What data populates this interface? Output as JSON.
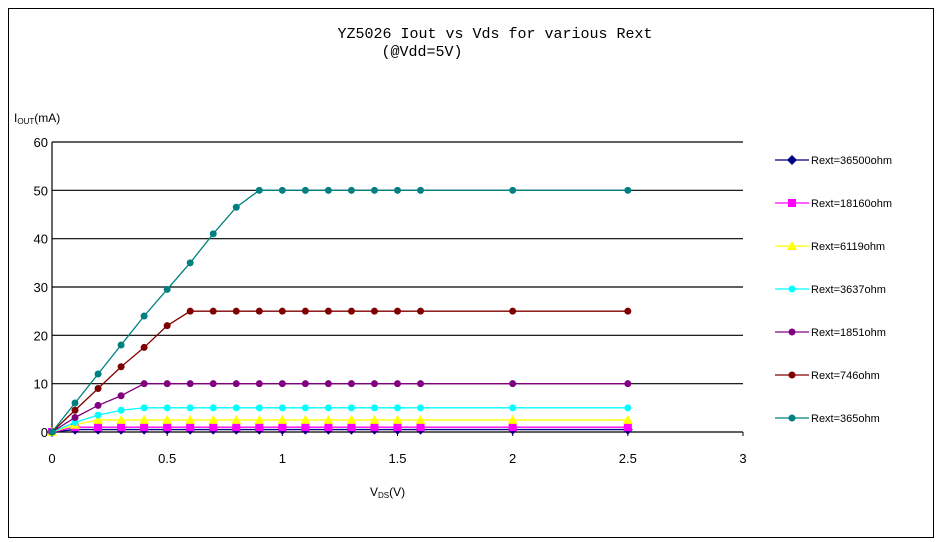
{
  "chart_data": {
    "type": "line",
    "title": "YZ5026 Iout vs Vds for various Rext",
    "subtitle": "(@Vdd=5V)",
    "ylabel_main": "I",
    "ylabel_sub": "OUT",
    "ylabel_unit": "(mA)",
    "xlabel_main": "V",
    "xlabel_sub": "DS",
    "xlabel_unit": "(V)",
    "xlim": [
      0,
      3
    ],
    "ylim": [
      0,
      60
    ],
    "x_ticks": [
      "0",
      "0.5",
      "1",
      "1.5",
      "2",
      "2.5",
      "3"
    ],
    "y_ticks": [
      "0",
      "10",
      "20",
      "30",
      "40",
      "50",
      "60"
    ],
    "grid": "horizontal",
    "legend_position": "right",
    "x": [
      0,
      0.1,
      0.2,
      0.3,
      0.4,
      0.5,
      0.6,
      0.7,
      0.8,
      0.9,
      1.0,
      1.1,
      1.2,
      1.3,
      1.4,
      1.5,
      1.6,
      2.0,
      2.5
    ],
    "series": [
      {
        "name": "Rext=36500ohm",
        "color": "#000080",
        "marker": "diamond",
        "values": [
          0,
          0.5,
          0.5,
          0.5,
          0.5,
          0.5,
          0.5,
          0.5,
          0.5,
          0.5,
          0.5,
          0.5,
          0.5,
          0.5,
          0.5,
          0.5,
          0.5,
          0.5,
          0.5
        ]
      },
      {
        "name": "Rext=18160ohm",
        "color": "#ff00ff",
        "marker": "square",
        "values": [
          0,
          1,
          1,
          1,
          1,
          1,
          1,
          1,
          1,
          1,
          1,
          1,
          1,
          1,
          1,
          1,
          1,
          1,
          1
        ]
      },
      {
        "name": "Rext=6119ohm",
        "color": "#ffff00",
        "marker": "triangle",
        "values": [
          0,
          1.5,
          2.5,
          2.5,
          2.5,
          2.5,
          2.5,
          2.5,
          2.5,
          2.5,
          2.5,
          2.5,
          2.5,
          2.5,
          2.5,
          2.5,
          2.5,
          2.5,
          2.5
        ]
      },
      {
        "name": "Rext=3637ohm",
        "color": "#00ffff",
        "marker": "circle",
        "values": [
          0,
          2,
          3.5,
          4.5,
          5,
          5,
          5,
          5,
          5,
          5,
          5,
          5,
          5,
          5,
          5,
          5,
          5,
          5,
          5
        ]
      },
      {
        "name": "Rext=1851ohm",
        "color": "#800080",
        "marker": "circle",
        "values": [
          0,
          3,
          5.5,
          7.5,
          10,
          10,
          10,
          10,
          10,
          10,
          10,
          10,
          10,
          10,
          10,
          10,
          10,
          10,
          10
        ]
      },
      {
        "name": "Rext=746ohm",
        "color": "#800000",
        "marker": "circle",
        "values": [
          0,
          4.5,
          9,
          13.5,
          17.5,
          22,
          25,
          25,
          25,
          25,
          25,
          25,
          25,
          25,
          25,
          25,
          25,
          25,
          25
        ]
      },
      {
        "name": "Rext=365ohm",
        "color": "#008080",
        "marker": "circle",
        "values": [
          0,
          6,
          12,
          18,
          24,
          29.5,
          35,
          41,
          46.5,
          50,
          50,
          50,
          50,
          50,
          50,
          50,
          50,
          50,
          50
        ]
      }
    ]
  }
}
